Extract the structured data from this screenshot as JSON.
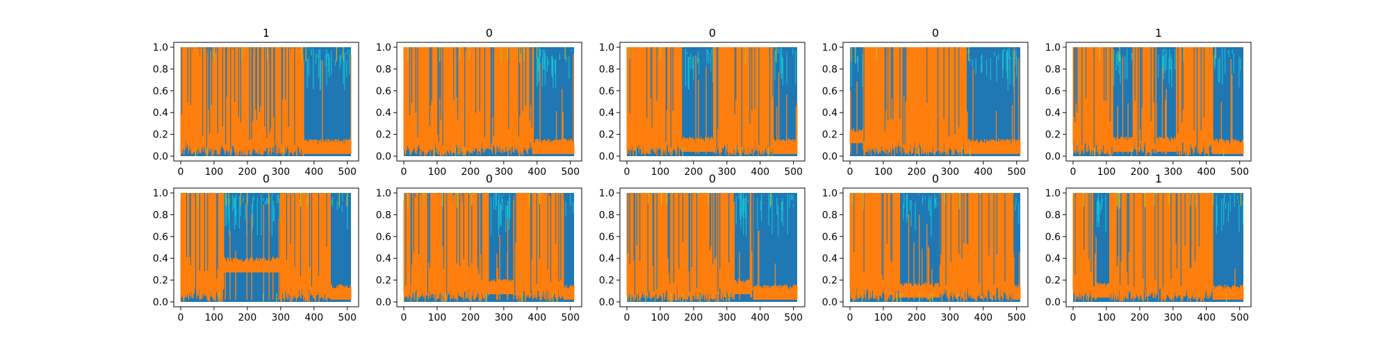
{
  "chart_data": [
    {
      "type": "area",
      "title": "1",
      "ylim": [
        0,
        1
      ],
      "xlim": [
        0,
        511
      ],
      "x_ticks": [
        "0",
        "100",
        "200",
        "300",
        "400",
        "500"
      ],
      "y_ticks": [
        "0.0",
        "0.2",
        "0.4",
        "0.6",
        "0.8",
        "1.0"
      ],
      "series": [
        {
          "color": "#1f77b4"
        },
        {
          "color": "#ff7f0e"
        },
        {
          "color": "#17becf"
        },
        {
          "color": "#bcbd22"
        }
      ],
      "dominant_segments": [
        {
          "from": 0,
          "to": 370,
          "series": "orange",
          "level": 0.55
        },
        {
          "from": 370,
          "to": 511,
          "series": "blue",
          "level": 1.0,
          "orange_level": 0.1
        }
      ]
    },
    {
      "type": "area",
      "title": "0",
      "ylim": [
        0,
        1
      ],
      "xlim": [
        0,
        511
      ],
      "x_ticks": [
        "0",
        "100",
        "200",
        "300",
        "400",
        "500"
      ],
      "y_ticks": [
        "0.0",
        "0.2",
        "0.4",
        "0.6",
        "0.8",
        "1.0"
      ],
      "series": [
        {
          "color": "#1f77b4"
        },
        {
          "color": "#ff7f0e"
        },
        {
          "color": "#17becf"
        },
        {
          "color": "#bcbd22"
        }
      ],
      "dominant_segments": [
        {
          "from": 0,
          "to": 390,
          "series": "orange",
          "level": 0.6
        },
        {
          "from": 390,
          "to": 511,
          "series": "blue",
          "level": 1.0,
          "orange_level": 0.1
        }
      ]
    },
    {
      "type": "area",
      "title": "0",
      "ylim": [
        0,
        1
      ],
      "xlim": [
        0,
        511
      ],
      "x_ticks": [
        "0",
        "100",
        "200",
        "300",
        "400",
        "500"
      ],
      "y_ticks": [
        "0.0",
        "0.2",
        "0.4",
        "0.6",
        "0.8",
        "1.0"
      ],
      "series": [
        {
          "color": "#1f77b4"
        },
        {
          "color": "#ff7f0e"
        },
        {
          "color": "#17becf"
        },
        {
          "color": "#bcbd22"
        }
      ],
      "dominant_segments": [
        {
          "from": 0,
          "to": 165,
          "series": "orange",
          "level": 0.65
        },
        {
          "from": 165,
          "to": 260,
          "series": "blue",
          "level": 1.0,
          "orange_level": 0.12
        },
        {
          "from": 260,
          "to": 440,
          "series": "orange",
          "level": 0.6
        },
        {
          "from": 440,
          "to": 511,
          "series": "blue",
          "level": 1.0,
          "orange_level": 0.1
        }
      ]
    },
    {
      "type": "area",
      "title": "0",
      "ylim": [
        0,
        1
      ],
      "xlim": [
        0,
        511
      ],
      "x_ticks": [
        "0",
        "100",
        "200",
        "300",
        "400",
        "500"
      ],
      "y_ticks": [
        "0.0",
        "0.2",
        "0.4",
        "0.6",
        "0.8",
        "1.0"
      ],
      "series": [
        {
          "color": "#1f77b4"
        },
        {
          "color": "#ff7f0e"
        },
        {
          "color": "#17becf"
        },
        {
          "color": "#bcbd22"
        }
      ],
      "dominant_segments": [
        {
          "from": 0,
          "to": 40,
          "series": "blue",
          "level": 1.0,
          "orange_level": 0.2
        },
        {
          "from": 40,
          "to": 350,
          "series": "orange",
          "level": 0.75
        },
        {
          "from": 350,
          "to": 511,
          "series": "blue",
          "level": 1.0,
          "orange_level": 0.1
        }
      ]
    },
    {
      "type": "area",
      "title": "1",
      "ylim": [
        0,
        1
      ],
      "xlim": [
        0,
        511
      ],
      "x_ticks": [
        "0",
        "100",
        "200",
        "300",
        "400",
        "500"
      ],
      "y_ticks": [
        "0.0",
        "0.2",
        "0.4",
        "0.6",
        "0.8",
        "1.0"
      ],
      "series": [
        {
          "color": "#1f77b4"
        },
        {
          "color": "#ff7f0e"
        },
        {
          "color": "#17becf"
        },
        {
          "color": "#bcbd22"
        }
      ],
      "dominant_segments": [
        {
          "from": 0,
          "to": 120,
          "series": "orange",
          "level": 0.7
        },
        {
          "from": 120,
          "to": 180,
          "series": "blue",
          "level": 1.0,
          "orange_level": 0.12
        },
        {
          "from": 180,
          "to": 250,
          "series": "orange",
          "level": 0.7
        },
        {
          "from": 250,
          "to": 310,
          "series": "blue",
          "level": 1.0,
          "orange_level": 0.12
        },
        {
          "from": 310,
          "to": 420,
          "series": "orange",
          "level": 0.6
        },
        {
          "from": 420,
          "to": 511,
          "series": "blue",
          "level": 1.0,
          "orange_level": 0.1
        }
      ]
    },
    {
      "type": "area",
      "title": "0",
      "ylim": [
        0,
        1
      ],
      "xlim": [
        0,
        511
      ],
      "x_ticks": [
        "0",
        "100",
        "200",
        "300",
        "400",
        "500"
      ],
      "y_ticks": [
        "0.0",
        "0.2",
        "0.4",
        "0.6",
        "0.8",
        "1.0"
      ],
      "series": [
        {
          "color": "#1f77b4"
        },
        {
          "color": "#ff7f0e"
        },
        {
          "color": "#17becf"
        },
        {
          "color": "#bcbd22"
        }
      ],
      "dominant_segments": [
        {
          "from": 0,
          "to": 130,
          "series": "orange",
          "level": 0.6
        },
        {
          "from": 130,
          "to": 300,
          "series": "blue",
          "level": 1.0,
          "orange_level": 0.35
        },
        {
          "from": 300,
          "to": 450,
          "series": "orange",
          "level": 0.6
        },
        {
          "from": 450,
          "to": 511,
          "series": "blue",
          "level": 1.0,
          "orange_level": 0.1
        }
      ]
    },
    {
      "type": "area",
      "title": "0",
      "ylim": [
        0,
        1
      ],
      "xlim": [
        0,
        511
      ],
      "x_ticks": [
        "0",
        "100",
        "200",
        "300",
        "400",
        "500"
      ],
      "y_ticks": [
        "0.0",
        "0.2",
        "0.4",
        "0.6",
        "0.8",
        "1.0"
      ],
      "series": [
        {
          "color": "#1f77b4"
        },
        {
          "color": "#ff7f0e"
        },
        {
          "color": "#17becf"
        },
        {
          "color": "#bcbd22"
        }
      ],
      "dominant_segments": [
        {
          "from": 0,
          "to": 255,
          "series": "orange",
          "level": 0.55
        },
        {
          "from": 255,
          "to": 330,
          "series": "blue",
          "level": 1.0,
          "orange_level": 0.15
        },
        {
          "from": 330,
          "to": 480,
          "series": "orange",
          "level": 0.6
        },
        {
          "from": 480,
          "to": 511,
          "series": "blue",
          "level": 1.0,
          "orange_level": 0.1
        }
      ]
    },
    {
      "type": "area",
      "title": "0",
      "ylim": [
        0,
        1
      ],
      "xlim": [
        0,
        511
      ],
      "x_ticks": [
        "0",
        "100",
        "200",
        "300",
        "400",
        "500"
      ],
      "y_ticks": [
        "0.0",
        "0.2",
        "0.4",
        "0.6",
        "0.8",
        "1.0"
      ],
      "series": [
        {
          "color": "#1f77b4"
        },
        {
          "color": "#ff7f0e"
        },
        {
          "color": "#17becf"
        },
        {
          "color": "#bcbd22"
        }
      ],
      "dominant_segments": [
        {
          "from": 0,
          "to": 320,
          "series": "orange",
          "level": 0.65
        },
        {
          "from": 320,
          "to": 370,
          "series": "blue",
          "level": 1.0,
          "orange_level": 0.15
        },
        {
          "from": 370,
          "to": 380,
          "series": "orange",
          "level": 0.9
        },
        {
          "from": 380,
          "to": 511,
          "series": "blue",
          "level": 1.0,
          "orange_level": 0.1
        }
      ]
    },
    {
      "type": "area",
      "title": "0",
      "ylim": [
        0,
        1
      ],
      "xlim": [
        0,
        511
      ],
      "x_ticks": [
        "0",
        "100",
        "200",
        "300",
        "400",
        "500"
      ],
      "y_ticks": [
        "0.0",
        "0.2",
        "0.4",
        "0.6",
        "0.8",
        "1.0"
      ],
      "series": [
        {
          "color": "#1f77b4"
        },
        {
          "color": "#ff7f0e"
        },
        {
          "color": "#17becf"
        },
        {
          "color": "#bcbd22"
        }
      ],
      "dominant_segments": [
        {
          "from": 0,
          "to": 150,
          "series": "orange",
          "level": 0.65
        },
        {
          "from": 150,
          "to": 270,
          "series": "blue",
          "level": 1.0,
          "orange_level": 0.12
        },
        {
          "from": 270,
          "to": 490,
          "series": "orange",
          "level": 0.6
        },
        {
          "from": 490,
          "to": 511,
          "series": "blue",
          "level": 1.0,
          "orange_level": 0.1
        }
      ]
    },
    {
      "type": "area",
      "title": "1",
      "ylim": [
        0,
        1
      ],
      "xlim": [
        0,
        511
      ],
      "x_ticks": [
        "0",
        "100",
        "200",
        "300",
        "400",
        "500"
      ],
      "y_ticks": [
        "0.0",
        "0.2",
        "0.4",
        "0.6",
        "0.8",
        "1.0"
      ],
      "series": [
        {
          "color": "#1f77b4"
        },
        {
          "color": "#ff7f0e"
        },
        {
          "color": "#17becf"
        },
        {
          "color": "#bcbd22"
        }
      ],
      "dominant_segments": [
        {
          "from": 0,
          "to": 60,
          "series": "orange",
          "level": 0.7
        },
        {
          "from": 60,
          "to": 110,
          "series": "blue",
          "level": 1.0,
          "orange_level": 0.12
        },
        {
          "from": 110,
          "to": 420,
          "series": "orange",
          "level": 0.7
        },
        {
          "from": 420,
          "to": 511,
          "series": "blue",
          "level": 1.0,
          "orange_level": 0.1
        }
      ]
    }
  ]
}
